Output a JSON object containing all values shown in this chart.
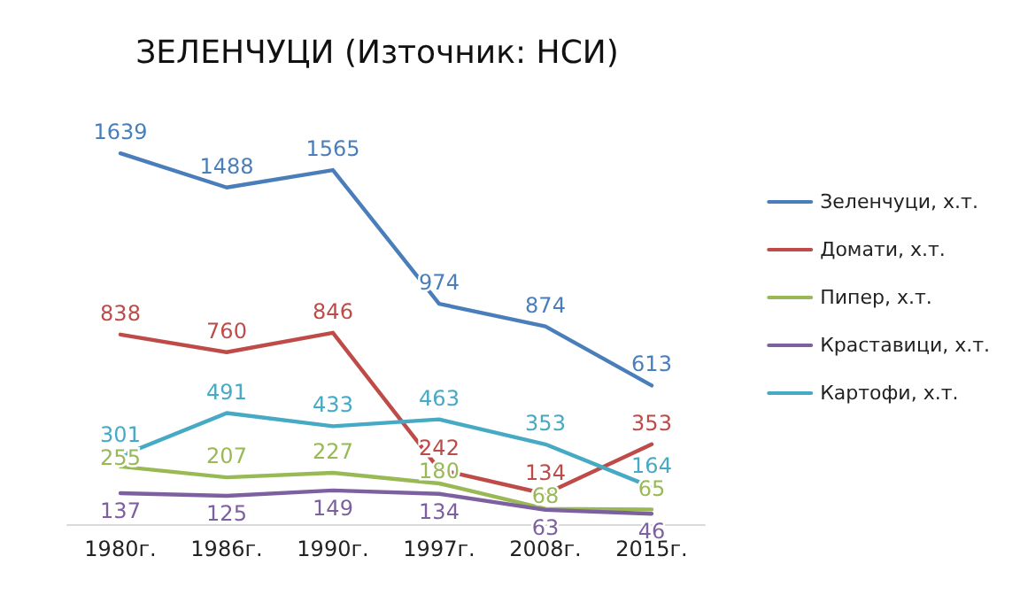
{
  "chart_data": {
    "type": "line",
    "title": "ЗЕЛЕНЧУЦИ (Източник: НСИ)",
    "categories": [
      "1980г.",
      "1986г.",
      "1990г.",
      "1997г.",
      "2008г.",
      "2015г."
    ],
    "series": [
      {
        "name": "Зеленчуци, х.т.",
        "color": "#4a7ebb",
        "values": [
          1639,
          1488,
          1565,
          974,
          874,
          613
        ]
      },
      {
        "name": "Домати, х.т.",
        "color": "#be4b48",
        "values": [
          838,
          760,
          846,
          242,
          134,
          353
        ]
      },
      {
        "name": "Пипер, х.т.",
        "color": "#98b954",
        "values": [
          255,
          207,
          227,
          180,
          68,
          65
        ]
      },
      {
        "name": "Краставици, х.т.",
        "color": "#7d60a0",
        "values": [
          137,
          125,
          149,
          134,
          63,
          46
        ]
      },
      {
        "name": "Картофи, х.т.",
        "color": "#46aac5",
        "values": [
          301,
          491,
          433,
          463,
          353,
          164
        ]
      }
    ],
    "tick_labels": "x",
    "grid": false,
    "legend": "right",
    "marker": "none",
    "line_style": "solid",
    "data_labels": true
  }
}
